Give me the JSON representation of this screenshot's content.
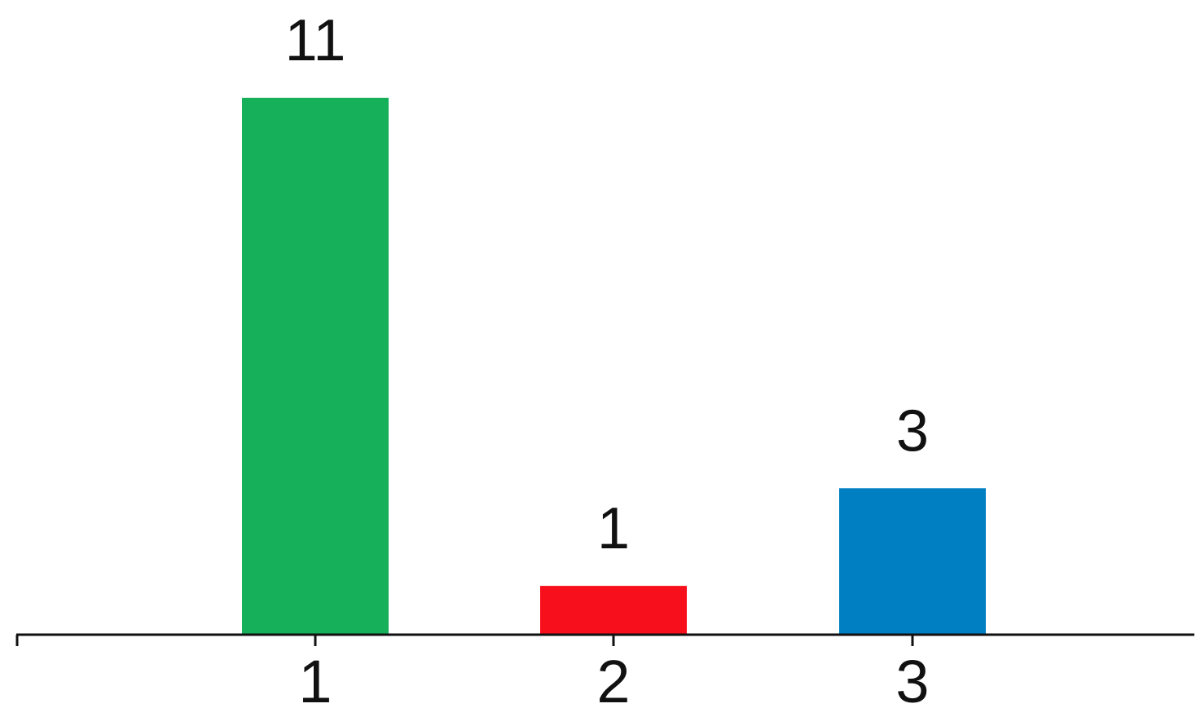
{
  "chart_data": {
    "type": "bar",
    "categories": [
      "1",
      "2",
      "3"
    ],
    "values": [
      11,
      1,
      3
    ],
    "data_labels": [
      "11",
      "1",
      "3"
    ],
    "colors": [
      "#16b05a",
      "#f70f1c",
      "#0080c2"
    ],
    "title": "",
    "xlabel": "",
    "ylabel": "",
    "ylim": [
      0,
      11
    ],
    "grid": false,
    "legend": "none",
    "y_axis_visible": false
  }
}
